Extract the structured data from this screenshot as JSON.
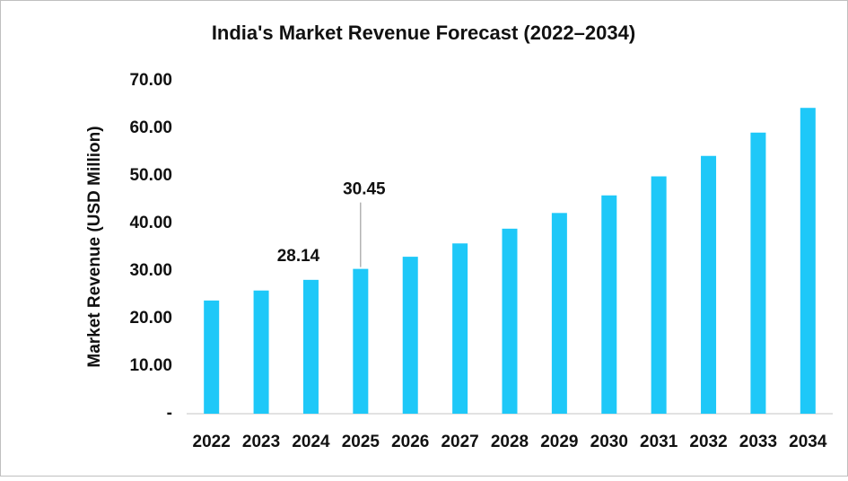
{
  "chart_data": {
    "type": "bar",
    "title": "India's Market Revenue Forecast (2022–2034)",
    "y_label": "Market Revenue (USD Million)",
    "categories": [
      "2022",
      "2023",
      "2024",
      "2025",
      "2026",
      "2027",
      "2028",
      "2029",
      "2030",
      "2031",
      "2032",
      "2033",
      "2034"
    ],
    "values": [
      23.8,
      25.9,
      28.14,
      30.45,
      33.0,
      35.8,
      38.9,
      42.2,
      45.9,
      49.9,
      54.2,
      59.1,
      64.3
    ],
    "value_labels": [
      null,
      null,
      "28.14",
      "30.45",
      null,
      null,
      null,
      null,
      null,
      null,
      null,
      null,
      null
    ],
    "color": "#1ec8f8",
    "ylim": [
      0,
      70
    ],
    "yticks": [
      {
        "value": 0,
        "label": "-"
      },
      {
        "value": 10,
        "label": "10.00"
      },
      {
        "value": 20,
        "label": "20.00"
      },
      {
        "value": 30,
        "label": "30.00"
      },
      {
        "value": 40,
        "label": "40.00"
      },
      {
        "value": 50,
        "label": "50.00"
      },
      {
        "value": 60,
        "label": "60.00"
      },
      {
        "value": 70,
        "label": "70.00"
      }
    ],
    "grid": false
  }
}
